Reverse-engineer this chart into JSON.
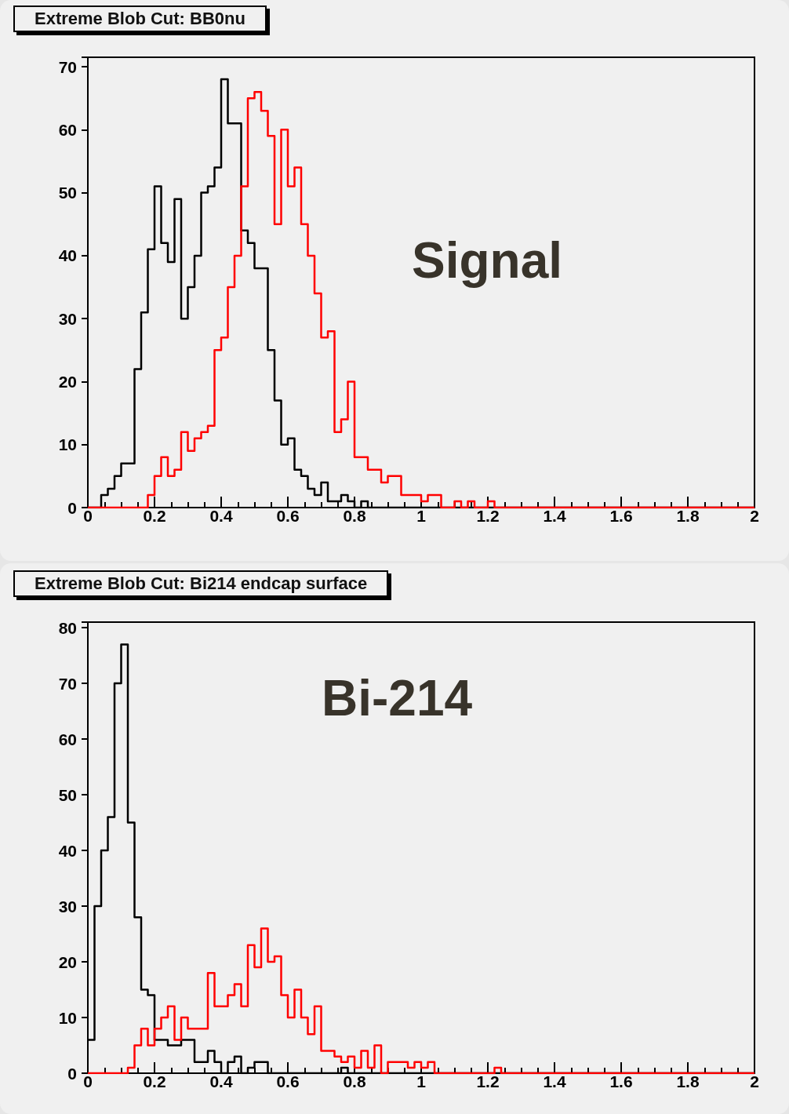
{
  "chart_data": [
    {
      "type": "histogram",
      "title": "Extreme Blob Cut: BB0nu",
      "annotations": [
        "Signal"
      ],
      "bins": [
        0,
        0.02,
        0.04,
        0.06,
        0.08,
        0.1,
        0.12,
        0.14,
        0.16,
        0.18,
        0.2,
        0.22,
        0.24,
        0.26,
        0.28,
        0.3,
        0.32,
        0.34,
        0.36,
        0.38,
        0.4,
        0.42,
        0.44,
        0.46,
        0.48,
        0.5,
        0.52,
        0.54,
        0.56,
        0.58,
        0.6,
        0.62,
        0.64,
        0.66,
        0.68,
        0.7,
        0.72,
        0.74,
        0.76,
        0.78,
        0.8,
        0.82,
        0.84,
        0.86,
        0.88,
        0.9,
        0.92,
        0.94,
        0.96,
        0.98,
        1,
        1.02,
        1.04,
        1.06,
        1.08,
        1.1,
        1.12,
        1.14,
        1.16,
        1.18,
        1.2,
        1.22,
        1.24,
        1.26,
        1.28,
        1.3,
        1.32,
        1.34,
        1.36,
        1.38,
        1.4,
        1.42,
        1.44,
        1.46,
        1.48,
        1.5,
        1.52,
        1.54,
        1.56,
        1.58,
        1.6,
        1.62,
        1.64,
        1.66,
        1.68,
        1.7,
        1.72,
        1.74,
        1.76,
        1.78,
        1.8,
        1.82,
        1.84,
        1.86,
        1.88,
        1.9,
        1.92,
        1.94,
        1.96,
        1.98,
        2
      ],
      "series": [
        {
          "color": "#000000",
          "values": [
            0,
            0,
            2,
            3,
            5,
            7,
            7,
            22,
            31,
            41,
            51,
            42,
            39,
            49,
            30,
            35,
            40,
            50,
            51,
            54,
            68,
            61,
            61,
            44,
            42,
            38,
            38,
            25,
            17,
            10,
            11,
            6,
            5,
            3,
            2,
            4,
            1,
            1,
            2,
            1,
            0,
            1,
            0,
            0,
            0,
            0,
            0,
            0,
            0,
            0,
            0,
            0,
            0,
            0,
            0,
            0,
            0,
            0,
            0,
            0,
            0,
            0,
            0,
            0,
            0,
            0,
            0,
            0,
            0,
            0,
            0,
            0,
            0,
            0,
            0,
            0,
            0,
            0,
            0,
            0,
            0,
            0,
            0,
            0,
            0,
            0,
            0,
            0,
            0,
            0,
            0,
            0,
            0,
            0,
            0,
            0,
            0,
            0,
            0,
            0
          ]
        },
        {
          "color": "#ff0000",
          "values": [
            0,
            0,
            0,
            0,
            0,
            0,
            0,
            0,
            0,
            2,
            5,
            8,
            5,
            6,
            12,
            9,
            11,
            12,
            13,
            25,
            27,
            35,
            40,
            51,
            65,
            66,
            63,
            59,
            45,
            60,
            51,
            54,
            45,
            40,
            34,
            27,
            28,
            12,
            14,
            20,
            8,
            8,
            6,
            6,
            4,
            5,
            5,
            2,
            2,
            2,
            1,
            2,
            2,
            0,
            0,
            1,
            0,
            1,
            0,
            0,
            1,
            0,
            0,
            0,
            0,
            0,
            0,
            0,
            0,
            0,
            0,
            0,
            0,
            0,
            0,
            0,
            0,
            0,
            0,
            0,
            0,
            0,
            0,
            0,
            0,
            0,
            0,
            0,
            0,
            0,
            0,
            0,
            0,
            0,
            0,
            0,
            0,
            0,
            0,
            0
          ]
        }
      ],
      "xlim": [
        0,
        2
      ],
      "xticks": [
        0,
        0.2,
        0.4,
        0.6,
        0.8,
        1,
        1.2,
        1.4,
        1.6,
        1.8,
        2
      ],
      "ylim": [
        0,
        71.5
      ],
      "yticks": [
        0,
        10,
        20,
        30,
        40,
        50,
        60,
        70
      ],
      "grid": false
    },
    {
      "type": "histogram",
      "title": "Extreme Blob Cut: Bi214 endcap surface",
      "annotations": [
        "Bi-214"
      ],
      "bins": [
        0,
        0.02,
        0.04,
        0.06,
        0.08,
        0.1,
        0.12,
        0.14,
        0.16,
        0.18,
        0.2,
        0.22,
        0.24,
        0.26,
        0.28,
        0.3,
        0.32,
        0.34,
        0.36,
        0.38,
        0.4,
        0.42,
        0.44,
        0.46,
        0.48,
        0.5,
        0.52,
        0.54,
        0.56,
        0.58,
        0.6,
        0.62,
        0.64,
        0.66,
        0.68,
        0.7,
        0.72,
        0.74,
        0.76,
        0.78,
        0.8,
        0.82,
        0.84,
        0.86,
        0.88,
        0.9,
        0.92,
        0.94,
        0.96,
        0.98,
        1,
        1.02,
        1.04,
        1.06,
        1.08,
        1.1,
        1.12,
        1.14,
        1.16,
        1.18,
        1.2,
        1.22,
        1.24,
        1.26,
        1.28,
        1.3,
        1.32,
        1.34,
        1.36,
        1.38,
        1.4,
        1.42,
        1.44,
        1.46,
        1.48,
        1.5,
        1.52,
        1.54,
        1.56,
        1.58,
        1.6,
        1.62,
        1.64,
        1.66,
        1.68,
        1.7,
        1.72,
        1.74,
        1.76,
        1.78,
        1.8,
        1.82,
        1.84,
        1.86,
        1.88,
        1.9,
        1.92,
        1.94,
        1.96,
        1.98,
        2
      ],
      "series": [
        {
          "color": "#000000",
          "values": [
            6,
            30,
            40,
            46,
            70,
            77,
            45,
            28,
            15,
            14,
            6,
            6,
            5,
            5,
            6,
            6,
            2,
            2,
            4,
            2,
            0,
            2,
            3,
            0,
            1,
            2,
            2,
            0,
            0,
            0,
            0,
            0,
            0,
            0,
            0,
            0,
            0,
            0,
            1,
            0,
            0,
            0,
            0,
            0,
            0,
            0,
            0,
            0,
            0,
            0,
            0,
            0,
            0,
            0,
            0,
            0,
            0,
            0,
            0,
            0,
            0,
            0,
            0,
            0,
            0,
            0,
            0,
            0,
            0,
            0,
            0,
            0,
            0,
            0,
            0,
            0,
            0,
            0,
            0,
            0,
            0,
            0,
            0,
            0,
            0,
            0,
            0,
            0,
            0,
            0,
            0,
            0,
            0,
            0,
            0,
            0,
            0,
            0,
            0,
            0
          ]
        },
        {
          "color": "#ff0000",
          "values": [
            0,
            0,
            0,
            0,
            0,
            0,
            1,
            5,
            8,
            5,
            8,
            10,
            12,
            6,
            10,
            8,
            8,
            8,
            18,
            12,
            12,
            14,
            16,
            12,
            23,
            19,
            26,
            20,
            21,
            14,
            10,
            15,
            10,
            7,
            12,
            4,
            4,
            3,
            2,
            3,
            1,
            4,
            1,
            5,
            0,
            2,
            2,
            2,
            1,
            2,
            1,
            2,
            0,
            0,
            0,
            0,
            0,
            0,
            0,
            0,
            0,
            1,
            0,
            0,
            0,
            0,
            0,
            0,
            0,
            0,
            0,
            0,
            0,
            0,
            0,
            0,
            0,
            0,
            0,
            0,
            0,
            0,
            0,
            0,
            0,
            0,
            0,
            0,
            0,
            0,
            0,
            0,
            0,
            0,
            0,
            0,
            0,
            0,
            0,
            0
          ]
        }
      ],
      "xlim": [
        0,
        2
      ],
      "xticks": [
        0,
        0.2,
        0.4,
        0.6,
        0.8,
        1,
        1.2,
        1.4,
        1.6,
        1.8,
        2
      ],
      "ylim": [
        0,
        81
      ],
      "yticks": [
        0,
        10,
        20,
        30,
        40,
        50,
        60,
        70,
        80
      ],
      "grid": false
    }
  ]
}
